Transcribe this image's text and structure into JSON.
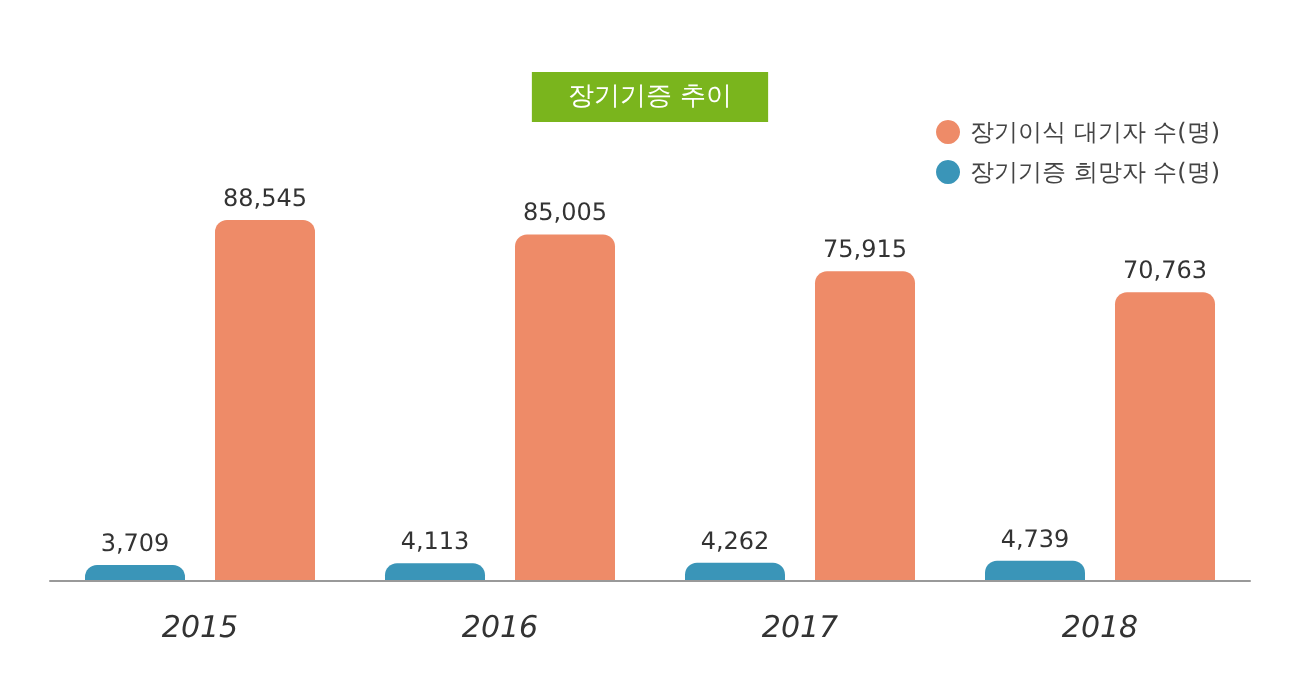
{
  "chart_data": {
    "type": "bar",
    "title": "장기기증 추이",
    "categories": [
      "2015",
      "2016",
      "2017",
      "2018"
    ],
    "series": [
      {
        "name": "장기기증 희망자 수(명)",
        "color": "#3a95b8",
        "values": [
          3709,
          4113,
          4262,
          4739
        ],
        "value_labels": [
          "3,709",
          "4,113",
          "4,262",
          "4,739"
        ]
      },
      {
        "name": "장기이식 대기자 수(명)",
        "color": "#ee8b68",
        "values": [
          88545,
          85005,
          75915,
          70763
        ],
        "value_labels": [
          "88,545",
          "85,005",
          "75,915",
          "70,763"
        ]
      }
    ],
    "legend": "top right"
  }
}
